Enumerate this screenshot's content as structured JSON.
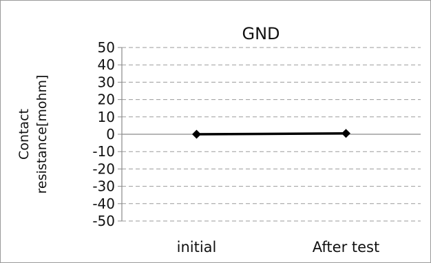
{
  "chart_data": {
    "type": "line",
    "title": "GND",
    "xlabel": "",
    "ylabel_line1": "Contact",
    "ylabel_line2": "resistance[mohm]",
    "categories": [
      "initial",
      "After test"
    ],
    "series": [
      {
        "values": [
          0,
          0.5
        ],
        "color": "#000000",
        "marker": "diamond"
      }
    ],
    "ylim": [
      -50,
      50
    ],
    "yticks": [
      50,
      40,
      30,
      20,
      10,
      0,
      -10,
      -20,
      -30,
      -40,
      -50
    ],
    "grid": "horizontal-dashed",
    "legend": "none"
  }
}
